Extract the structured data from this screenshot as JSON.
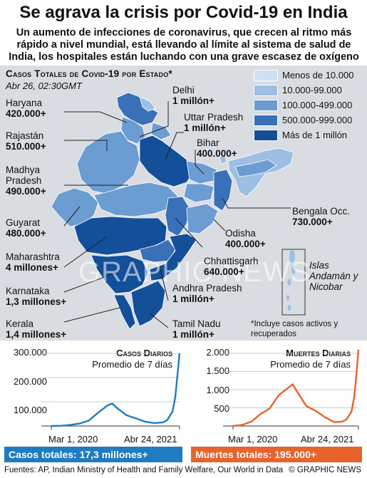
{
  "title": "Se agrava la crisis por Covid-19 en India",
  "subtitle": "Un aumento de infecciones de coronavirus, que crecen al ritmo más rápido a nivel mundial, está llevando al límite al sistema de salud de India, los hospitales están luchando con una grave escasez de oxígeno",
  "map": {
    "title": "Casos Totales de Covid-19  por Estado*",
    "date": "Abr 26, 02:30GMT",
    "note": "*Incluye casos activos y recuperados",
    "islands_label": "Islas Andamán y Nicobar",
    "legend": [
      {
        "label": "Menos de 10.000",
        "color": "#cfe0f2"
      },
      {
        "label": "10.000-99.000",
        "color": "#9dbfe3"
      },
      {
        "label": "100.000-499.000",
        "color": "#6b9cd2"
      },
      {
        "label": "500.000-999.000",
        "color": "#3a70b8"
      },
      {
        "label": "Más de 1 millón",
        "color": "#14509a"
      }
    ],
    "states": [
      {
        "name": "Haryana",
        "value": "420.000+"
      },
      {
        "name": "Rajastán",
        "value": "510.000+"
      },
      {
        "name": "Madhya Pradesh",
        "value": "490.000+"
      },
      {
        "name": "Guyarat",
        "value": "480.000+"
      },
      {
        "name": "Maharashtra",
        "value": "4 millones+"
      },
      {
        "name": "Karnataka",
        "value": "1,3 millones+"
      },
      {
        "name": "Kerala",
        "value": "1,4 millones+"
      },
      {
        "name": "Delhi",
        "value": "1 millón+"
      },
      {
        "name": "Uttar Pradesh",
        "value": "1 millón+"
      },
      {
        "name": "Bihar",
        "value": "400.000+"
      },
      {
        "name": "Bengala Occ.",
        "value": "730.000+"
      },
      {
        "name": "Odisha",
        "value": "400.000+"
      },
      {
        "name": "Chhattisgarh",
        "value": "640.000+"
      },
      {
        "name": "Andhra Pradesh",
        "value": "1 millón+"
      },
      {
        "name": "Tamil Nadu",
        "value": "1 millón+"
      }
    ],
    "colors": {
      "panel": "#d9dde2",
      "leader": "#222222"
    },
    "watermark": "GRAPHIC NEWS"
  },
  "chart_data": [
    {
      "type": "line",
      "title": "Casos Diarios",
      "subtitle": "Promedio de 7 días",
      "color": "#1f7cc0",
      "ylim": [
        0,
        300000
      ],
      "yticks": [
        "300.000",
        "200.000",
        "100.000"
      ],
      "ytick_values": [
        300000,
        200000,
        100000
      ],
      "xticks": [
        "Mar 1, 2020",
        "Abr 24, 2021"
      ],
      "x": [
        "2020-03-01",
        "2020-04-01",
        "2020-05-01",
        "2020-06-01",
        "2020-07-01",
        "2020-08-01",
        "2020-09-01",
        "2020-09-16",
        "2020-10-01",
        "2020-11-01",
        "2020-12-01",
        "2021-01-01",
        "2021-02-01",
        "2021-03-01",
        "2021-03-15",
        "2021-04-01",
        "2021-04-10",
        "2021-04-17",
        "2021-04-24"
      ],
      "values": [
        0,
        1000,
        4000,
        10000,
        22000,
        55000,
        85000,
        93000,
        75000,
        45000,
        32000,
        18000,
        12000,
        15000,
        25000,
        60000,
        120000,
        210000,
        300000
      ],
      "total": "Casos totales: 17,3 millones+"
    },
    {
      "type": "line",
      "title": "Muertes Diarias",
      "subtitle": "Promedio de 7 días",
      "color": "#e8622c",
      "ylim": [
        0,
        2000
      ],
      "yticks": [
        "2.000",
        "1.500",
        "1.000",
        "500"
      ],
      "ytick_values": [
        2000,
        1500,
        1000,
        500
      ],
      "xticks": [
        "Mar 1, 2020",
        "Abr 24, 2021"
      ],
      "x": [
        "2020-03-01",
        "2020-04-01",
        "2020-05-01",
        "2020-06-01",
        "2020-07-01",
        "2020-08-01",
        "2020-09-01",
        "2020-09-16",
        "2020-10-01",
        "2020-11-01",
        "2020-12-01",
        "2021-01-01",
        "2021-02-01",
        "2021-03-01",
        "2021-03-15",
        "2021-04-01",
        "2021-04-10",
        "2021-04-17",
        "2021-04-24"
      ],
      "values": [
        0,
        30,
        120,
        330,
        480,
        850,
        1050,
        1150,
        950,
        550,
        420,
        250,
        110,
        120,
        180,
        400,
        800,
        1400,
        2100
      ],
      "total": "Muertes totales: 195.000+"
    }
  ],
  "footer": {
    "sources": "Fuentes: AP, Indian Ministry of Health and Family Welfare, Our World in Data",
    "credit": "© GRAPHIC NEWS"
  }
}
